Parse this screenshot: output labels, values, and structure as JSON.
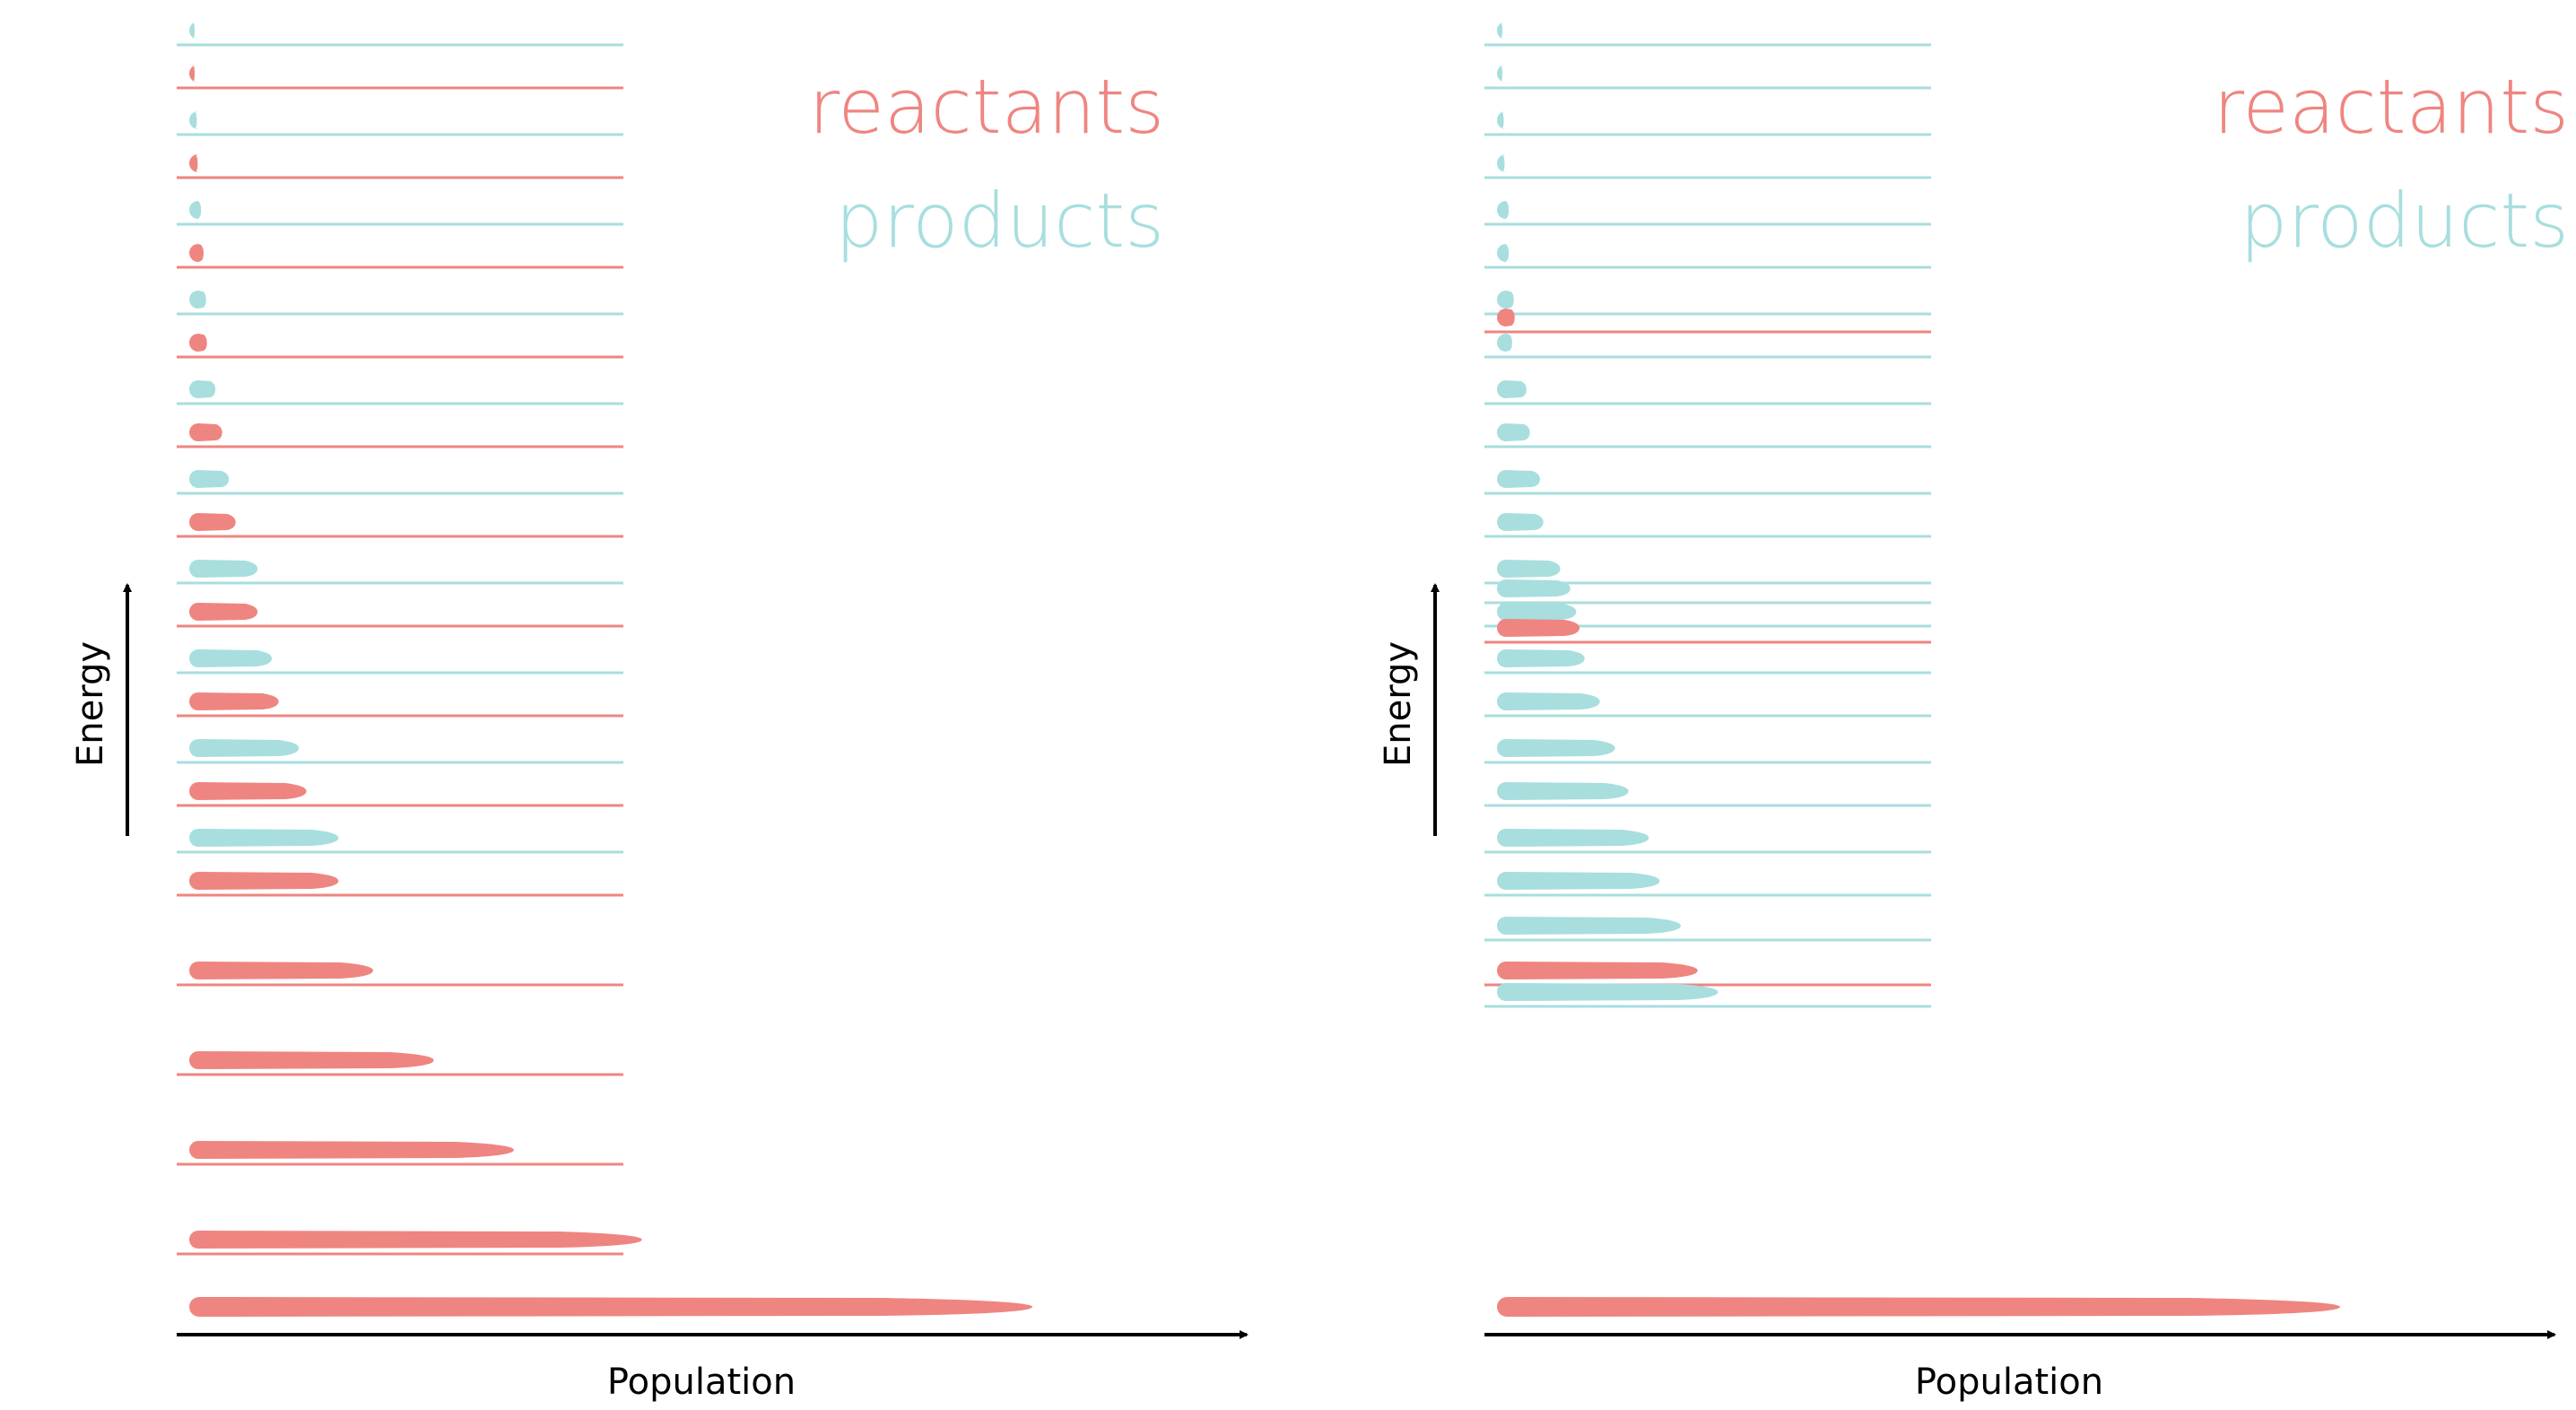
{
  "colors": {
    "reactants": "#ef8580",
    "products": "#a8dede",
    "axis": "#000000"
  },
  "panels": [
    {
      "name": "left",
      "legend": {
        "reactants": "reactants",
        "products": "products"
      },
      "xlabel": "Population",
      "ylabel": "Energy",
      "levels": [
        {
          "type": "products",
          "population": 0.004
        },
        {
          "type": "reactants",
          "population": 0.005
        },
        {
          "type": "products",
          "population": 0.009
        },
        {
          "type": "reactants",
          "population": 0.01
        },
        {
          "type": "products",
          "population": 0.014
        },
        {
          "type": "reactants",
          "population": 0.017
        },
        {
          "type": "products",
          "population": 0.02
        },
        {
          "type": "reactants",
          "population": 0.021
        },
        {
          "type": "products",
          "population": 0.031
        },
        {
          "type": "reactants",
          "population": 0.039
        },
        {
          "type": "products",
          "population": 0.047
        },
        {
          "type": "reactants",
          "population": 0.055
        },
        {
          "type": "products",
          "population": 0.081
        },
        {
          "type": "reactants",
          "population": 0.081
        },
        {
          "type": "products",
          "population": 0.098
        },
        {
          "type": "reactants",
          "population": 0.106
        },
        {
          "type": "products",
          "population": 0.13
        },
        {
          "type": "reactants",
          "population": 0.139
        },
        {
          "type": "products",
          "population": 0.177
        },
        {
          "type": "reactants",
          "population": 0.177
        },
        {
          "type": "reactants",
          "population": 0.218
        },
        {
          "type": "reactants",
          "population": 0.29
        },
        {
          "type": "reactants",
          "population": 0.385
        },
        {
          "type": "reactants",
          "population": 0.537
        },
        {
          "type": "reactants",
          "population": 1.0
        }
      ]
    },
    {
      "name": "right",
      "legend": {
        "reactants": "reactants",
        "products": "products"
      },
      "xlabel": "Population",
      "ylabel": "Energy",
      "levels": [
        {
          "type": "products",
          "population": 0.004
        },
        {
          "type": "products",
          "population": 0.005
        },
        {
          "type": "products",
          "population": 0.008
        },
        {
          "type": "products",
          "population": 0.009
        },
        {
          "type": "products",
          "population": 0.014
        },
        {
          "type": "products",
          "population": 0.014
        },
        {
          "type": "products",
          "population": 0.02
        },
        {
          "type": "reactants",
          "population": 0.021
        },
        {
          "type": "products",
          "population": 0.018
        },
        {
          "type": "products",
          "population": 0.035
        },
        {
          "type": "products",
          "population": 0.039
        },
        {
          "type": "products",
          "population": 0.051
        },
        {
          "type": "products",
          "population": 0.055
        },
        {
          "type": "products",
          "population": 0.075
        },
        {
          "type": "products",
          "population": 0.087
        },
        {
          "type": "products",
          "population": 0.094
        },
        {
          "type": "reactants",
          "population": 0.098
        },
        {
          "type": "products",
          "population": 0.104
        },
        {
          "type": "products",
          "population": 0.122
        },
        {
          "type": "products",
          "population": 0.14
        },
        {
          "type": "products",
          "population": 0.156
        },
        {
          "type": "products",
          "population": 0.18
        },
        {
          "type": "products",
          "population": 0.193
        },
        {
          "type": "products",
          "population": 0.218
        },
        {
          "type": "reactants",
          "population": 0.238
        },
        {
          "type": "products",
          "population": 0.262
        },
        {
          "type": "reactants",
          "population": 1.0
        }
      ]
    }
  ]
}
